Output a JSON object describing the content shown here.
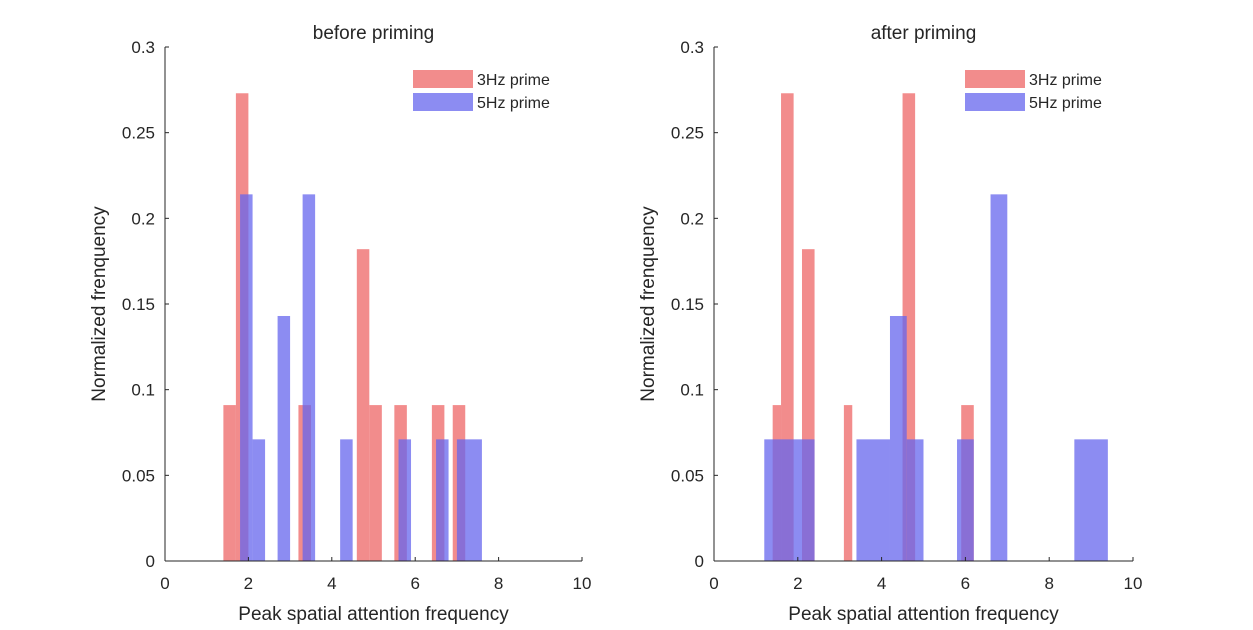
{
  "chart_data": [
    {
      "type": "bar",
      "title": "before priming",
      "xlabel": "Peak spatial attention frequency",
      "ylabel": "Normalized frenquency",
      "xlim": [
        0,
        10
      ],
      "ylim": [
        0,
        0.3
      ],
      "xticks": [
        0,
        2,
        4,
        6,
        8,
        10
      ],
      "xtick_labels": [
        "0",
        "2",
        "4",
        "6",
        "8",
        "10"
      ],
      "yticks": [
        0,
        0.05,
        0.1,
        0.15,
        0.2,
        0.25,
        0.3
      ],
      "ytick_labels": [
        "0",
        "0.05",
        "0.1",
        "0.15",
        "0.2",
        "0.25",
        "0.3"
      ],
      "legend_position": "top-right",
      "series": [
        {
          "name": "3Hz prime",
          "color": "#ee6666",
          "bins": [
            {
              "x0": 1.4,
              "x1": 1.7,
              "value": 0.091
            },
            {
              "x0": 1.7,
              "x1": 2.0,
              "value": 0.273
            },
            {
              "x0": 3.2,
              "x1": 3.5,
              "value": 0.091
            },
            {
              "x0": 4.6,
              "x1": 4.9,
              "value": 0.182
            },
            {
              "x0": 4.9,
              "x1": 5.2,
              "value": 0.091
            },
            {
              "x0": 5.5,
              "x1": 5.8,
              "value": 0.091
            },
            {
              "x0": 6.4,
              "x1": 6.7,
              "value": 0.091
            },
            {
              "x0": 6.9,
              "x1": 7.2,
              "value": 0.091
            }
          ]
        },
        {
          "name": "5Hz prime",
          "color": "#6666ee",
          "bins": [
            {
              "x0": 1.8,
              "x1": 2.1,
              "value": 0.214
            },
            {
              "x0": 2.1,
              "x1": 2.4,
              "value": 0.071
            },
            {
              "x0": 2.7,
              "x1": 3.0,
              "value": 0.143
            },
            {
              "x0": 3.3,
              "x1": 3.6,
              "value": 0.214
            },
            {
              "x0": 4.2,
              "x1": 4.5,
              "value": 0.071
            },
            {
              "x0": 5.6,
              "x1": 5.9,
              "value": 0.071
            },
            {
              "x0": 6.5,
              "x1": 6.8,
              "value": 0.071
            },
            {
              "x0": 7.0,
              "x1": 7.6,
              "value": 0.071
            }
          ]
        }
      ]
    },
    {
      "type": "bar",
      "title": "after priming",
      "xlabel": "Peak spatial attention frequency",
      "ylabel": "Normalized frenquency",
      "xlim": [
        0,
        10
      ],
      "ylim": [
        0,
        0.3
      ],
      "xticks": [
        0,
        2,
        4,
        6,
        8,
        10
      ],
      "xtick_labels": [
        "0",
        "2",
        "4",
        "6",
        "8",
        "10"
      ],
      "yticks": [
        0,
        0.05,
        0.1,
        0.15,
        0.2,
        0.25,
        0.3
      ],
      "ytick_labels": [
        "0",
        "0.05",
        "0.1",
        "0.15",
        "0.2",
        "0.25",
        "0.3"
      ],
      "legend_position": "top-right",
      "series": [
        {
          "name": "3Hz prime",
          "color": "#ee6666",
          "bins": [
            {
              "x0": 1.4,
              "x1": 1.6,
              "value": 0.091
            },
            {
              "x0": 1.6,
              "x1": 1.9,
              "value": 0.273
            },
            {
              "x0": 2.1,
              "x1": 2.4,
              "value": 0.182
            },
            {
              "x0": 3.1,
              "x1": 3.3,
              "value": 0.091
            },
            {
              "x0": 4.5,
              "x1": 4.8,
              "value": 0.273
            },
            {
              "x0": 5.9,
              "x1": 6.2,
              "value": 0.091
            }
          ]
        },
        {
          "name": "5Hz prime",
          "color": "#6666ee",
          "bins": [
            {
              "x0": 1.2,
              "x1": 2.4,
              "value": 0.071
            },
            {
              "x0": 3.4,
              "x1": 4.2,
              "value": 0.071
            },
            {
              "x0": 4.2,
              "x1": 4.6,
              "value": 0.143
            },
            {
              "x0": 4.6,
              "x1": 5.0,
              "value": 0.071
            },
            {
              "x0": 5.8,
              "x1": 6.2,
              "value": 0.071
            },
            {
              "x0": 6.6,
              "x1": 7.0,
              "value": 0.214
            },
            {
              "x0": 8.6,
              "x1": 9.4,
              "value": 0.071
            }
          ]
        }
      ]
    }
  ]
}
